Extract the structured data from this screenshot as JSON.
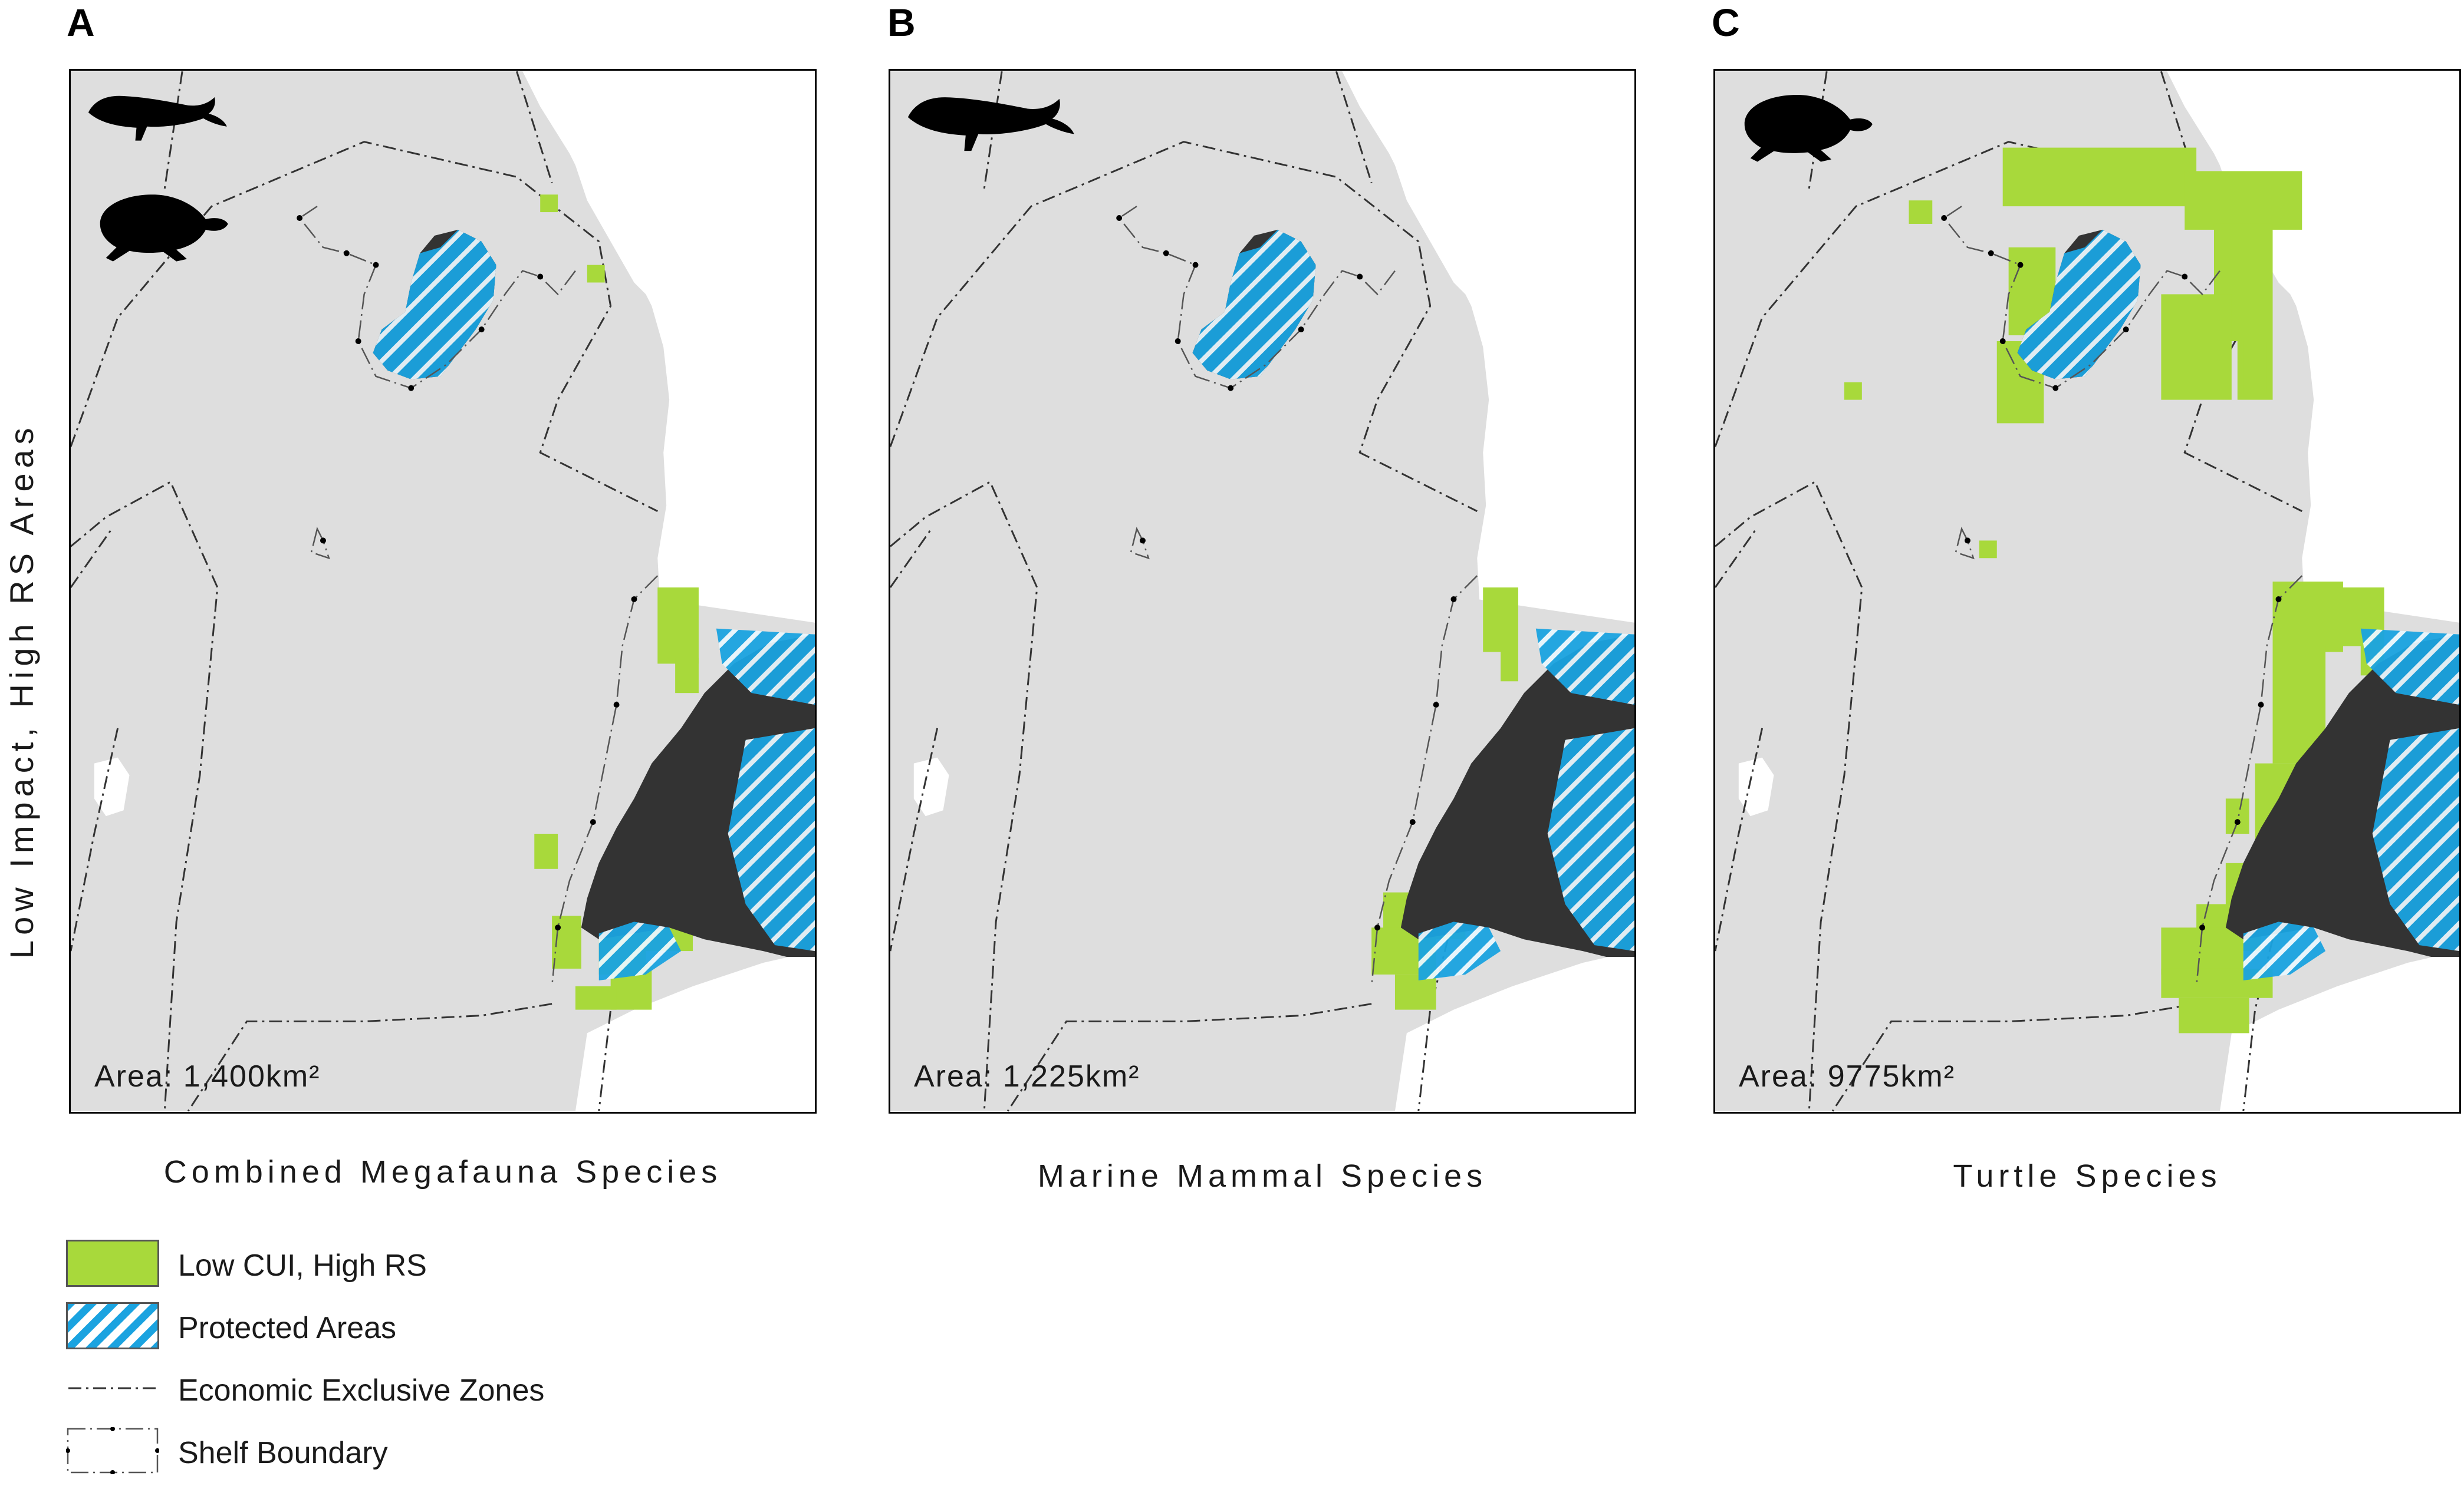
{
  "ylabel": "Low Impact, High RS Areas",
  "colors": {
    "land": "#333333",
    "sea": "#dedede",
    "highlight": "#a8d93b",
    "protected": "#1aa3e0"
  },
  "panels": [
    {
      "letter": "A",
      "area": "Area: 1,400km²",
      "caption": "Combined Megafauna Species",
      "icons": [
        "whale-icon",
        "turtle-icon"
      ]
    },
    {
      "letter": "B",
      "area": "Area: 1,225km²",
      "caption": "Marine Mammal Species",
      "icons": [
        "whale-icon"
      ]
    },
    {
      "letter": "C",
      "area": "Area: 9775km²",
      "caption": "Turtle Species",
      "icons": [
        "turtle-icon"
      ]
    }
  ],
  "legend": [
    {
      "label": "Low CUI, High RS",
      "symbol": "green-fill"
    },
    {
      "label": "Protected Areas",
      "symbol": "blue-hatch"
    },
    {
      "label": "Economic Exclusive Zones",
      "symbol": "dash-dot-line"
    },
    {
      "label": "Shelf Boundary",
      "symbol": "dotted-box"
    }
  ]
}
